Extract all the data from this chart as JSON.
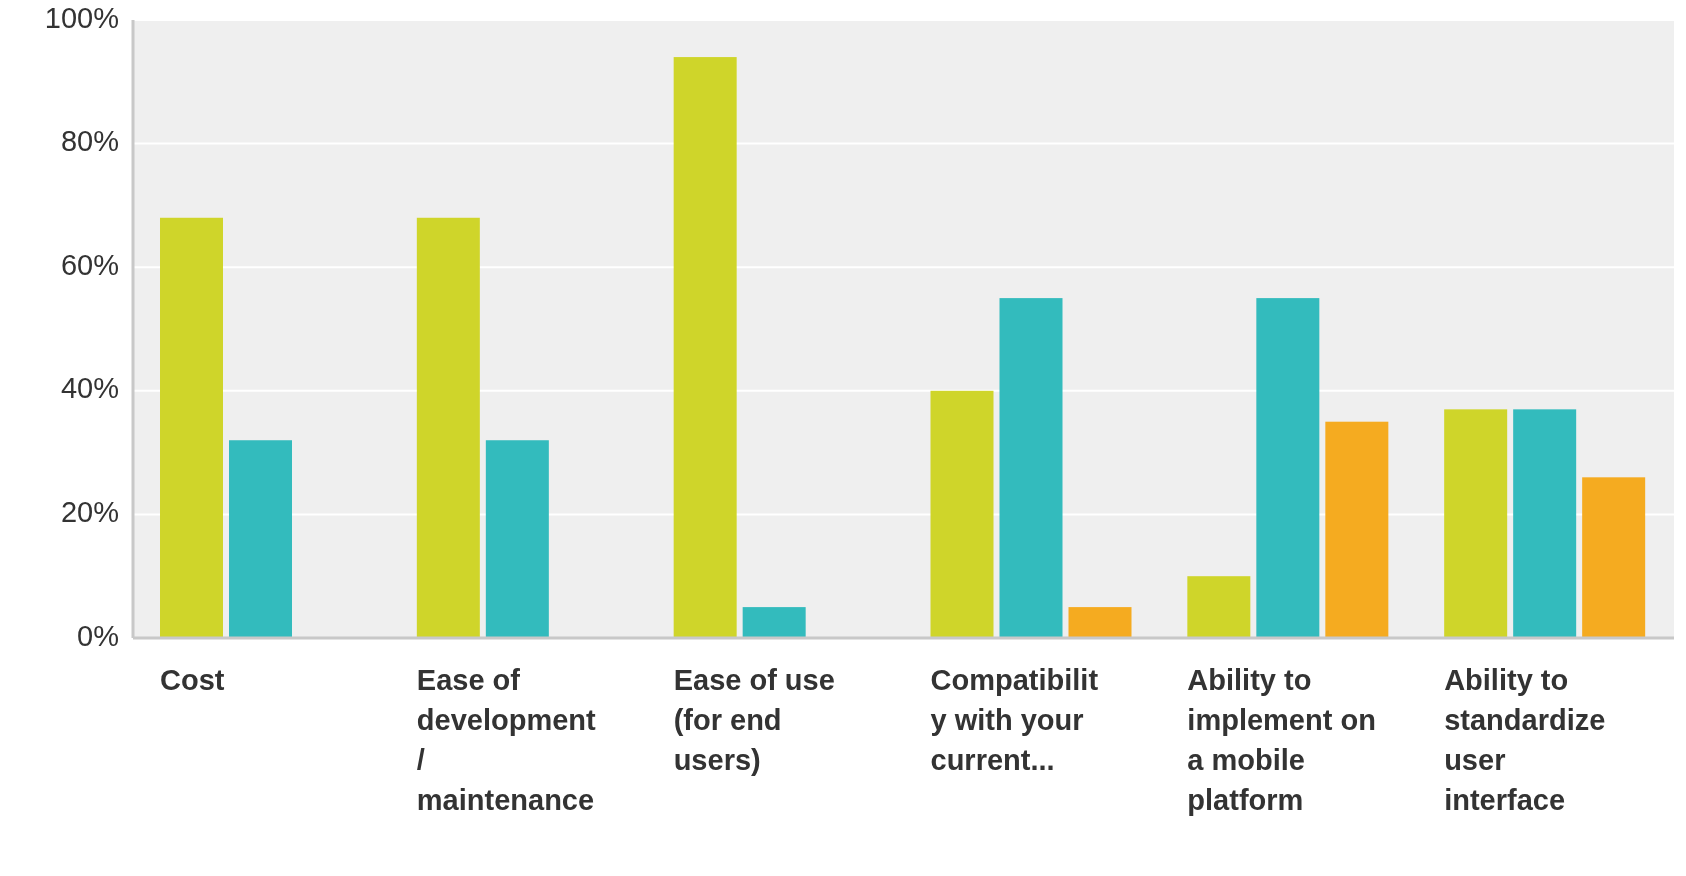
{
  "chart_data": {
    "type": "bar",
    "categories": [
      "Cost",
      "Ease of development / maintenance",
      "Ease of use (for end users)",
      "Compatibility with your current...",
      "Ability to implement on a mobile platform",
      "Ability to standardize user interface"
    ],
    "series": [
      {
        "color": "#cfd52a",
        "values": [
          68,
          68,
          94,
          40,
          10,
          37
        ]
      },
      {
        "color": "#33bbbd",
        "values": [
          32,
          32,
          5,
          55,
          55,
          37
        ]
      },
      {
        "color": "#f5ab20",
        "values": [
          null,
          null,
          null,
          5,
          35,
          26
        ]
      }
    ],
    "ylim": [
      0,
      100
    ],
    "yticks": [
      {
        "value": 0,
        "label": "0%"
      },
      {
        "value": 20,
        "label": "20%"
      },
      {
        "value": 40,
        "label": "40%"
      },
      {
        "value": 60,
        "label": "60%"
      },
      {
        "value": 80,
        "label": "80%"
      },
      {
        "value": 100,
        "label": "100%"
      }
    ],
    "grid": "y"
  }
}
